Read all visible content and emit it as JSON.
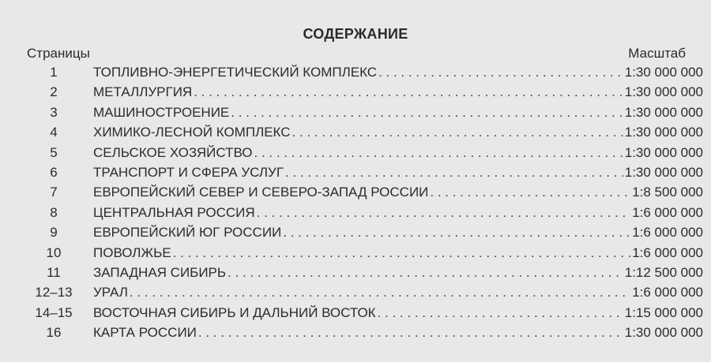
{
  "title": "СОДЕРЖАНИЕ",
  "header_left": "Страницы",
  "header_right": "Масштаб",
  "entries": [
    {
      "page": "1",
      "name": "ТОПЛИВНО-ЭНЕРГЕТИЧЕСКИЙ КОМПЛЕКС",
      "scale": "1:30 000 000"
    },
    {
      "page": "2",
      "name": "МЕТАЛЛУРГИЯ",
      "scale": "1:30 000 000"
    },
    {
      "page": "3",
      "name": "МАШИНОСТРОЕНИЕ",
      "scale": "1:30 000 000"
    },
    {
      "page": "4",
      "name": "ХИМИКО-ЛЕСНОЙ КОМПЛЕКС",
      "scale": "1:30 000 000"
    },
    {
      "page": "5",
      "name": "СЕЛЬСКОЕ ХОЗЯЙСТВО",
      "scale": "1:30 000 000"
    },
    {
      "page": "6",
      "name": "ТРАНСПОРТ И СФЕРА УСЛУГ",
      "scale": "1:30 000 000"
    },
    {
      "page": "7",
      "name": "ЕВРОПЕЙСКИЙ СЕВЕР И СЕВЕРО-ЗАПАД РОССИИ",
      "scale": "1:8 500 000"
    },
    {
      "page": "8",
      "name": "ЦЕНТРАЛЬНАЯ РОССИЯ",
      "scale": "1:6 000 000"
    },
    {
      "page": "9",
      "name": "ЕВРОПЕЙСКИЙ ЮГ РОССИИ",
      "scale": "1:6 000 000"
    },
    {
      "page": "10",
      "name": "ПОВОЛЖЬЕ",
      "scale": "1:6 000 000"
    },
    {
      "page": "11",
      "name": "ЗАПАДНАЯ СИБИРЬ",
      "scale": "1:12 500 000"
    },
    {
      "page": "12–13",
      "name": "УРАЛ",
      "scale": "1:6 000 000"
    },
    {
      "page": "14–15",
      "name": "ВОСТОЧНАЯ СИБИРЬ И ДАЛЬНИЙ ВОСТОК",
      "scale": "1:15 000 000"
    },
    {
      "page": "16",
      "name": "КАРТА РОССИИ",
      "scale": "1:30 000 000"
    }
  ]
}
